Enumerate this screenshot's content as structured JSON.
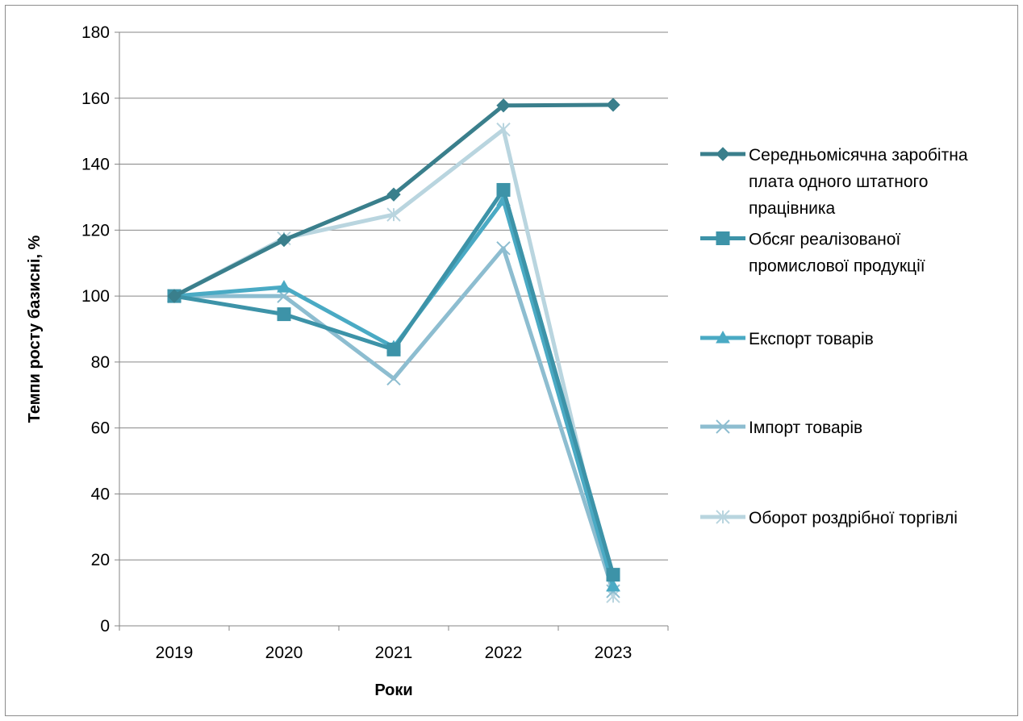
{
  "chart_data": {
    "type": "line",
    "title": "",
    "xlabel": "Роки",
    "ylabel": "Темпи росту базисні, %",
    "categories": [
      "2019",
      "2020",
      "2021",
      "2022",
      "2023"
    ],
    "ylim": [
      0,
      180
    ],
    "ytick_step": 20,
    "grid": true,
    "legend_position": "right",
    "series": [
      {
        "name": "Середньомісячна заробітна плата одного штатного працівника",
        "legend_lines": [
          "Середньомісячна заробітна",
          "плата одного штатного",
          "працівника"
        ],
        "values": [
          100,
          117,
          130.8,
          157.8,
          158
        ],
        "color": "#3a7f8c",
        "marker": "diamond"
      },
      {
        "name": "Обсяг реалізованої промислової продукції",
        "legend_lines": [
          "Обсяг реалізованої",
          "промислової продукції"
        ],
        "values": [
          100,
          94.5,
          83.8,
          132.2,
          15.5
        ],
        "color": "#3d93a8",
        "marker": "square"
      },
      {
        "name": "Експорт товарів",
        "legend_lines": [
          "Експорт товарів"
        ],
        "values": [
          100,
          102.7,
          84.5,
          129,
          12
        ],
        "color": "#4aaac4",
        "marker": "triangle"
      },
      {
        "name": "Імпорт товарів",
        "legend_lines": [
          "Імпорт товарів"
        ],
        "values": [
          100,
          100,
          75,
          114.5,
          10.5
        ],
        "color": "#8dbdd0",
        "marker": "x"
      },
      {
        "name": "Оборот роздрібної торгівлі",
        "legend_lines": [
          "Оборот роздрібної торгівлі"
        ],
        "values": [
          100,
          117.5,
          124.7,
          150.5,
          9
        ],
        "color": "#b9d5df",
        "marker": "star"
      }
    ]
  }
}
